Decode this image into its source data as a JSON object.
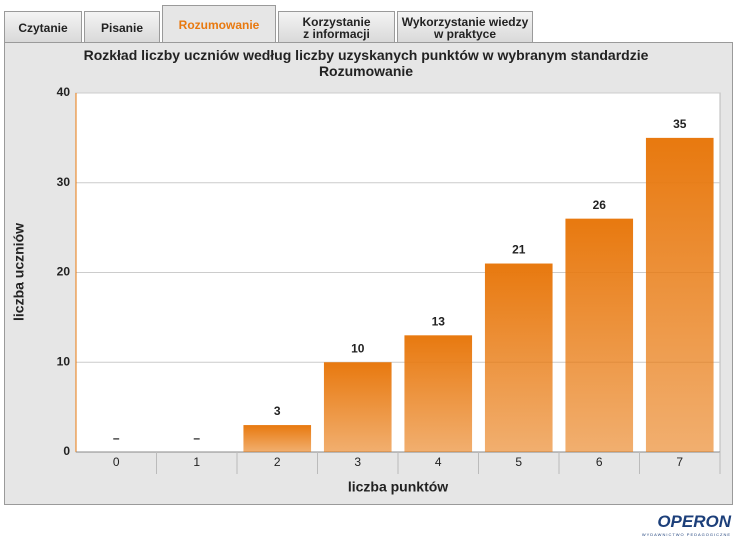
{
  "tabs": {
    "items": [
      [
        "Czytanie"
      ],
      [
        "Pisanie"
      ],
      [
        "Rozumowanie"
      ],
      [
        "Korzystanie",
        "z informacji"
      ],
      [
        "Wykorzystanie wiedzy",
        "w praktyce"
      ]
    ],
    "active": 2
  },
  "logo": {
    "name": "OPERON",
    "tagline": "WYDAWNICTWO PEDAGOGICZNE"
  },
  "chart_data": {
    "type": "bar",
    "title": "Rozkład liczby uczniów według liczby uzyskanych punktów w wybranym standardzie Rozumowanie",
    "x_label": "liczba punktów",
    "y_label": "liczba uczniów",
    "categories": [
      "0",
      "1",
      "2",
      "3",
      "4",
      "5",
      "6",
      "7"
    ],
    "values": [
      null,
      null,
      3,
      10,
      13,
      21,
      26,
      35
    ],
    "value_labels": [
      "–",
      "–",
      "3",
      "10",
      "13",
      "21",
      "26",
      "35"
    ],
    "color": "#e8790f",
    "ylim": [
      0,
      40
    ],
    "yticks": [
      0,
      10,
      20,
      30,
      40
    ],
    "grid": true
  }
}
